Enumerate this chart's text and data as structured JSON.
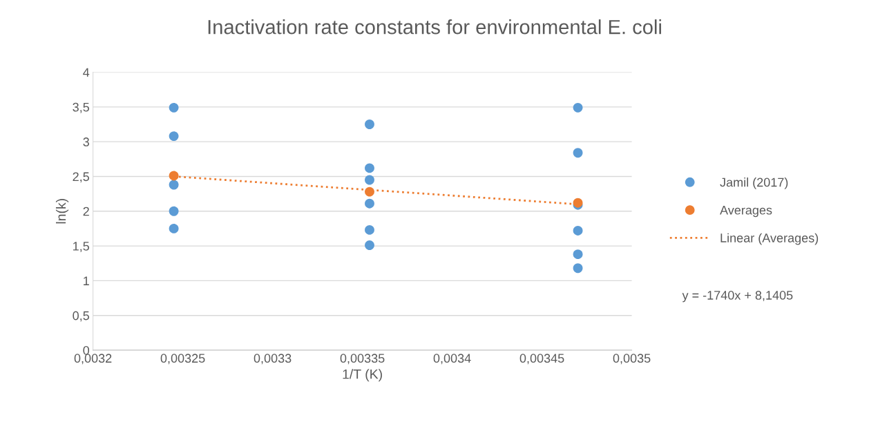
{
  "chart_data": {
    "type": "scatter",
    "title": "Inactivation rate constants for environmental E. coli",
    "xlabel": "1/T (K)",
    "ylabel": "ln(k)",
    "xlim": [
      0.0032,
      0.0035
    ],
    "xticks": [
      {
        "value": 0.0032,
        "label": "0,0032"
      },
      {
        "value": 0.00325,
        "label": "0,00325"
      },
      {
        "value": 0.0033,
        "label": "0,0033"
      },
      {
        "value": 0.00335,
        "label": "0,00335"
      },
      {
        "value": 0.0034,
        "label": "0,0034"
      },
      {
        "value": 0.00345,
        "label": "0,00345"
      },
      {
        "value": 0.0035,
        "label": "0,0035"
      }
    ],
    "ylim": [
      0,
      4
    ],
    "yticks": [
      0,
      {
        "value": 0.5,
        "label": "0,5"
      },
      1,
      {
        "value": 1.5,
        "label": "1,5"
      },
      2,
      {
        "value": 2.5,
        "label": "2,5"
      },
      3,
      {
        "value": 3.5,
        "label": "3,5"
      },
      4
    ],
    "grid": "y",
    "legend": "right",
    "marker": "circle",
    "series": [
      {
        "name": "Jamil (2017)",
        "color": "#5b9bd5",
        "x": [
          0.003245,
          0.003245,
          0.003245,
          0.003245,
          0.003245,
          0.003354,
          0.003354,
          0.003354,
          0.003354,
          0.003354,
          0.003354,
          0.00347,
          0.00347,
          0.00347,
          0.00347,
          0.00347,
          0.00347
        ],
        "values": [
          3.49,
          3.08,
          2.38,
          2.0,
          1.75,
          3.25,
          2.62,
          2.45,
          2.11,
          1.73,
          1.51,
          3.49,
          2.84,
          2.09,
          1.72,
          1.38,
          1.18
        ]
      },
      {
        "name": "Averages",
        "color": "#ed7d31",
        "x": [
          0.003245,
          0.003354,
          0.00347
        ],
        "values": [
          2.51,
          2.28,
          2.12
        ]
      },
      {
        "name": "Linear (Averages)",
        "type": "line",
        "line_style": "dotted",
        "marker": "none",
        "color": "#ed7d31",
        "x": [
          0.003245,
          0.00347
        ],
        "values": [
          2.5,
          2.1
        ]
      }
    ],
    "annotations": [
      "y = -1740x + 8,1405"
    ]
  }
}
